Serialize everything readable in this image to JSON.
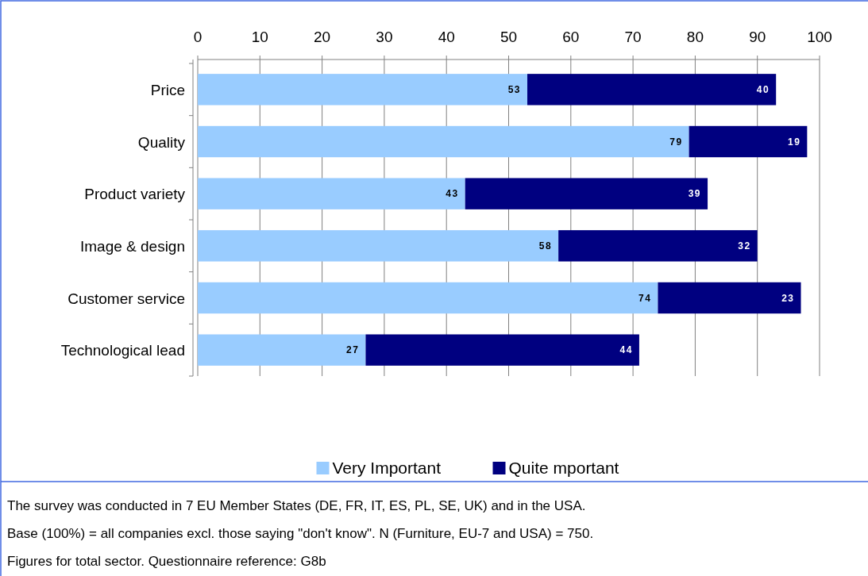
{
  "chart_data": {
    "type": "bar",
    "orientation": "horizontal",
    "stacked": true,
    "categories": [
      "Price",
      "Quality",
      "Product variety",
      "Image & design",
      "Customer service",
      "Technological lead"
    ],
    "series": [
      {
        "name": "Very Important",
        "color": "#99ccff",
        "values": [
          53,
          79,
          43,
          58,
          74,
          27
        ]
      },
      {
        "name": "Quite mportant",
        "color": "#000080",
        "values": [
          40,
          19,
          39,
          32,
          23,
          44
        ]
      }
    ],
    "xlim": [
      0,
      100
    ],
    "xticks": [
      0,
      10,
      20,
      30,
      40,
      50,
      60,
      70,
      80,
      90,
      100
    ],
    "grid": "x",
    "legend": "bottom",
    "data_labels": true,
    "annotations": [
      "The survey was conducted in 7 EU Member States (DE, FR, IT, ES, PL, SE, UK) and in the USA.",
      "Base (100%) = all companies excl. those saying \"don't know\". N (Furniture, EU-7 and USA) = 750.",
      "Figures for total sector. Questionnaire reference: G8b"
    ]
  }
}
